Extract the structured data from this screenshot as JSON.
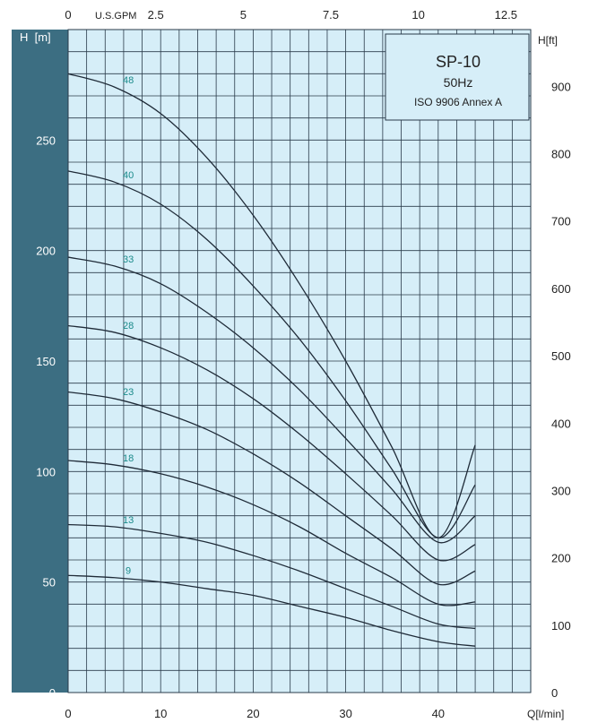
{
  "chart_data": {
    "type": "line",
    "title": "SP-10",
    "subtitle": "50Hz",
    "standard": "ISO 9906 Annex A",
    "xlabel": "Q[l/min]",
    "ylabel_left": "H  [m]",
    "ylabel_right": "H[ft]",
    "top_axis_label": "U.S.GPM",
    "xlim": [
      0,
      50
    ],
    "ylim": [
      0,
      300
    ],
    "x_ticks": [
      0,
      10,
      20,
      30,
      40
    ],
    "y_ticks_left": [
      0,
      50,
      100,
      150,
      200,
      250
    ],
    "y_ticks_right": [
      0,
      100,
      200,
      300,
      400,
      500,
      600,
      700,
      800,
      900
    ],
    "top_ticks": [
      "0",
      "2.5",
      "5",
      "7.5",
      "10",
      "12.5"
    ],
    "grid": true,
    "series": [
      {
        "name": "48",
        "x": [
          0,
          5,
          10,
          15,
          20,
          25,
          30,
          35,
          40,
          44
        ],
        "y": [
          280,
          274,
          262,
          242,
          216,
          185,
          150,
          111,
          70,
          112
        ]
      },
      {
        "name": "40",
        "x": [
          0,
          5,
          10,
          15,
          20,
          25,
          30,
          35,
          40,
          44
        ],
        "y": [
          236,
          231,
          221,
          205,
          184,
          160,
          132,
          101,
          70,
          94
        ]
      },
      {
        "name": "33",
        "x": [
          0,
          5,
          10,
          15,
          20,
          25,
          30,
          35,
          40,
          44
        ],
        "y": [
          197,
          193,
          185,
          172,
          156,
          137,
          115,
          92,
          68,
          80
        ]
      },
      {
        "name": "28",
        "x": [
          0,
          5,
          10,
          15,
          20,
          25,
          30,
          35,
          40,
          44
        ],
        "y": [
          166,
          163,
          156,
          146,
          133,
          117,
          99,
          80,
          60,
          67
        ]
      },
      {
        "name": "23",
        "x": [
          0,
          5,
          10,
          15,
          20,
          25,
          30,
          35,
          40,
          44
        ],
        "y": [
          136,
          133,
          127,
          119,
          108,
          95,
          80,
          65,
          49,
          55
        ]
      },
      {
        "name": "18",
        "x": [
          0,
          5,
          10,
          15,
          20,
          25,
          30,
          35,
          40,
          44
        ],
        "y": [
          105,
          103,
          99,
          93,
          85,
          75,
          63,
          52,
          40,
          41
        ]
      },
      {
        "name": "13",
        "x": [
          0,
          5,
          10,
          15,
          20,
          25,
          30,
          35,
          40,
          44
        ],
        "y": [
          76,
          75,
          72,
          68,
          62,
          55,
          47,
          39,
          31,
          29
        ]
      },
      {
        "name": "9",
        "x": [
          0,
          5,
          10,
          15,
          20,
          25,
          30,
          35,
          40,
          44
        ],
        "y": [
          53,
          52,
          50,
          47,
          44,
          39,
          34,
          28,
          23,
          21
        ]
      }
    ],
    "colors": {
      "plot_bg": "#d6eef8",
      "grid": "#2a3b4a",
      "left_band": "#3c6e82",
      "curve": "#1f2b38",
      "label": "#1a8a8a",
      "box_bg": "#d6eef8"
    }
  }
}
